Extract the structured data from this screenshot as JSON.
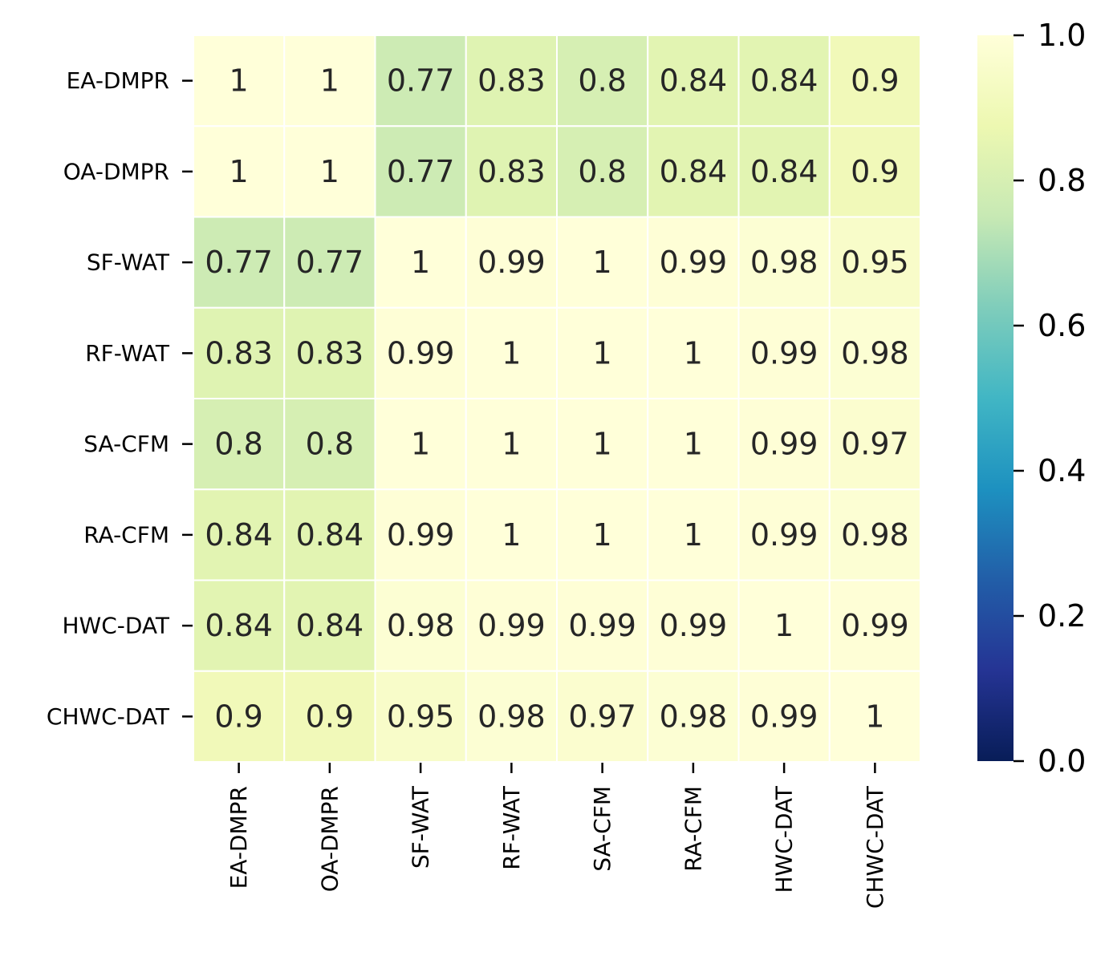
{
  "chart_data": {
    "type": "heatmap",
    "title": "",
    "xlabel": "",
    "ylabel": "",
    "rows": [
      "EA-DMPR",
      "OA-DMPR",
      "SF-WAT",
      "RF-WAT",
      "SA-CFM",
      "RA-CFM",
      "HWC-DAT",
      "CHWC-DAT"
    ],
    "columns": [
      "EA-DMPR",
      "OA-DMPR",
      "SF-WAT",
      "RF-WAT",
      "SA-CFM",
      "RA-CFM",
      "HWC-DAT",
      "CHWC-DAT"
    ],
    "values": [
      [
        1,
        1,
        0.77,
        0.83,
        0.8,
        0.84,
        0.84,
        0.9
      ],
      [
        1,
        1,
        0.77,
        0.83,
        0.8,
        0.84,
        0.84,
        0.9
      ],
      [
        0.77,
        0.77,
        1,
        0.99,
        1,
        0.99,
        0.98,
        0.95
      ],
      [
        0.83,
        0.83,
        0.99,
        1,
        1,
        1,
        0.99,
        0.98
      ],
      [
        0.8,
        0.8,
        1,
        1,
        1,
        1,
        0.99,
        0.97
      ],
      [
        0.84,
        0.84,
        0.99,
        1,
        1,
        1,
        0.99,
        0.98
      ],
      [
        0.84,
        0.84,
        0.98,
        0.99,
        0.99,
        0.99,
        1,
        0.99
      ],
      [
        0.9,
        0.9,
        0.95,
        0.98,
        0.97,
        0.98,
        0.99,
        1
      ]
    ],
    "value_labels": [
      [
        "1",
        "1",
        "0.77",
        "0.83",
        "0.8",
        "0.84",
        "0.84",
        "0.9"
      ],
      [
        "1",
        "1",
        "0.77",
        "0.83",
        "0.8",
        "0.84",
        "0.84",
        "0.9"
      ],
      [
        "0.77",
        "0.77",
        "1",
        "0.99",
        "1",
        "0.99",
        "0.98",
        "0.95"
      ],
      [
        "0.83",
        "0.83",
        "0.99",
        "1",
        "1",
        "1",
        "0.99",
        "0.98"
      ],
      [
        "0.8",
        "0.8",
        "1",
        "1",
        "1",
        "1",
        "0.99",
        "0.97"
      ],
      [
        "0.84",
        "0.84",
        "0.99",
        "1",
        "1",
        "1",
        "0.99",
        "0.98"
      ],
      [
        "0.84",
        "0.84",
        "0.98",
        "0.99",
        "0.99",
        "0.99",
        "1",
        "0.99"
      ],
      [
        "0.9",
        "0.9",
        "0.95",
        "0.98",
        "0.97",
        "0.98",
        "0.99",
        "1"
      ]
    ],
    "colorscale": "YlGnBu",
    "colorbar": {
      "range": [
        0.0,
        1.0
      ],
      "ticks": [
        0.0,
        0.2,
        0.4,
        0.6,
        0.8,
        1.0
      ],
      "tick_labels": [
        "0.0",
        "0.2",
        "0.4",
        "0.6",
        "0.8",
        "1.0"
      ],
      "stops": [
        {
          "v": 0.0,
          "color": "#081d58"
        },
        {
          "v": 0.125,
          "color": "#253494"
        },
        {
          "v": 0.25,
          "color": "#225ea8"
        },
        {
          "v": 0.375,
          "color": "#1d91c0"
        },
        {
          "v": 0.5,
          "color": "#41b6c4"
        },
        {
          "v": 0.625,
          "color": "#7fcdbb"
        },
        {
          "v": 0.75,
          "color": "#c7e9b4"
        },
        {
          "v": 0.875,
          "color": "#edf8b1"
        },
        {
          "v": 1.0,
          "color": "#ffffd9"
        }
      ]
    },
    "grid": true
  }
}
